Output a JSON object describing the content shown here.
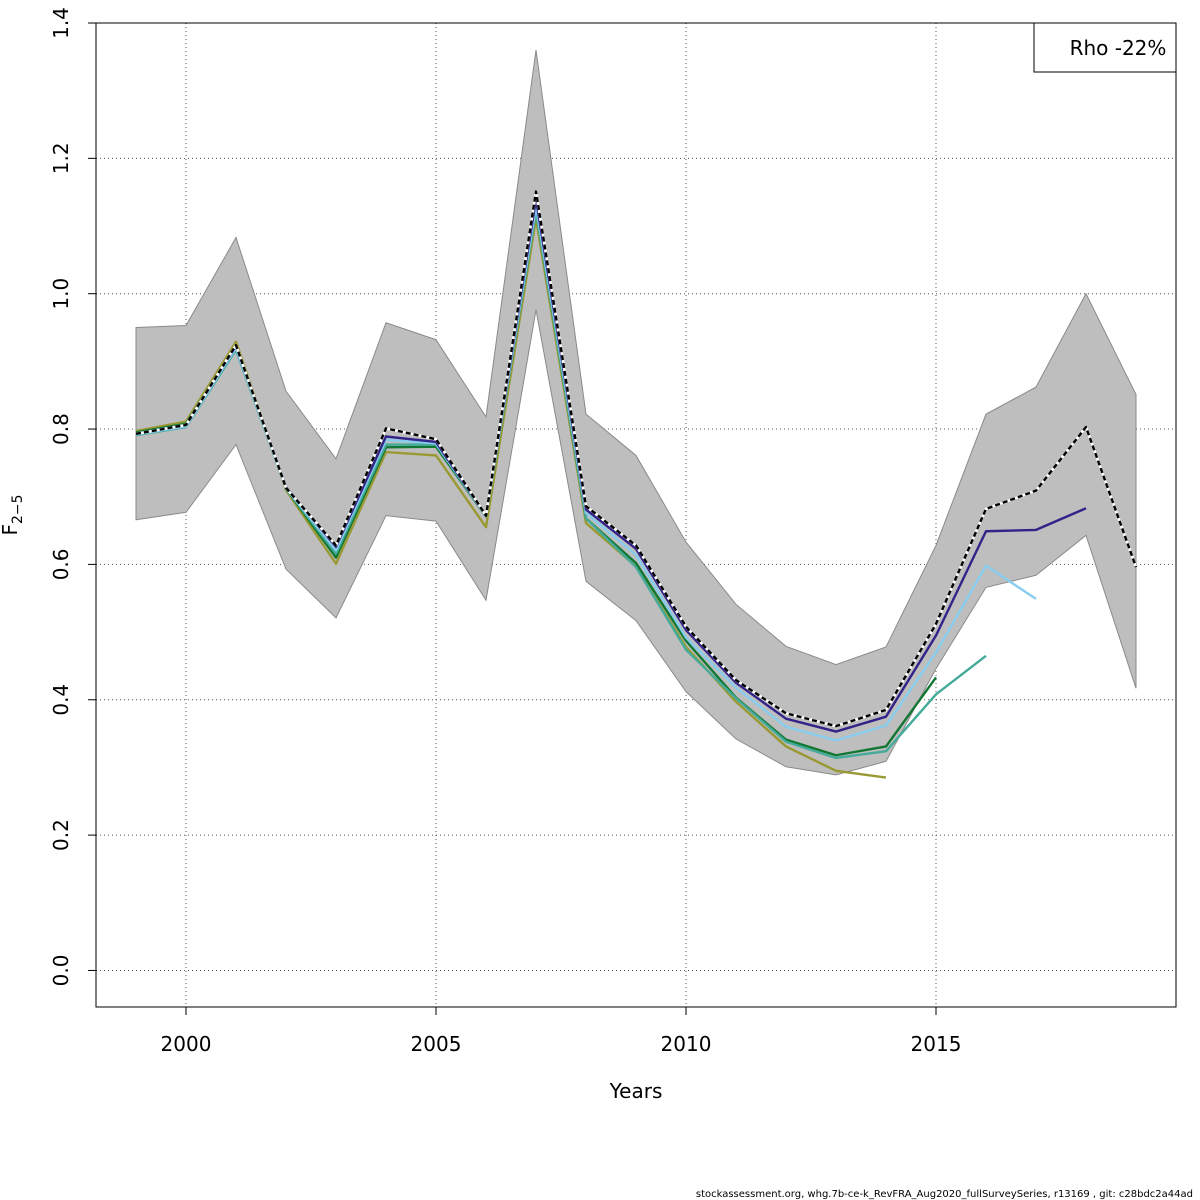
{
  "chart_data": {
    "type": "line",
    "xlabel": "Years",
    "ylabel_main": "F",
    "ylabel_sub": "2−5",
    "xlim": [
      1998.2,
      2019.8
    ],
    "ylim": [
      -0.054,
      1.4
    ],
    "xticks": [
      2000,
      2005,
      2010,
      2015
    ],
    "yticks": [
      0.0,
      0.2,
      0.4,
      0.6,
      0.8,
      1.0,
      1.2,
      1.4
    ],
    "ytick_labels": [
      "0.0",
      "0.2",
      "0.4",
      "0.6",
      "0.8",
      "1.0",
      "1.2",
      "1.4"
    ],
    "grid": true,
    "legend": {
      "text": "Rho -22%",
      "position": "top-right"
    },
    "band": {
      "color": "#bebebe",
      "x": [
        1999,
        2000,
        2001,
        2002,
        2003,
        2004,
        2005,
        2006,
        2007,
        2008,
        2009,
        2010,
        2011,
        2012,
        2013,
        2014,
        2015,
        2016,
        2017,
        2018,
        2019
      ],
      "upper": [
        0.95,
        0.953,
        1.083,
        0.856,
        0.756,
        0.957,
        0.932,
        0.818,
        1.36,
        0.822,
        0.761,
        0.633,
        0.541,
        0.479,
        0.452,
        0.478,
        0.628,
        0.822,
        0.862,
        1.0,
        0.851
      ],
      "lower": [
        0.666,
        0.677,
        0.777,
        0.593,
        0.521,
        0.672,
        0.664,
        0.547,
        0.976,
        0.575,
        0.517,
        0.412,
        0.342,
        0.301,
        0.289,
        0.309,
        0.446,
        0.566,
        0.584,
        0.643,
        0.417
      ]
    },
    "series": [
      {
        "color": "#000000",
        "dashed": true,
        "x": [
          1999,
          2000,
          2001,
          2002,
          2003,
          2004,
          2005,
          2006,
          2007,
          2008,
          2009,
          2010,
          2011,
          2012,
          2013,
          2014,
          2015,
          2016,
          2017,
          2018,
          2019
        ],
        "y": [
          0.793,
          0.806,
          0.924,
          0.713,
          0.628,
          0.801,
          0.785,
          0.672,
          1.151,
          0.686,
          0.628,
          0.508,
          0.429,
          0.38,
          0.361,
          0.385,
          0.512,
          0.682,
          0.709,
          0.803,
          0.596
        ]
      },
      {
        "color": "#332288",
        "x": [
          1999,
          2000,
          2001,
          2002,
          2003,
          2004,
          2005,
          2006,
          2007,
          2008,
          2009,
          2010,
          2011,
          2012,
          2013,
          2014,
          2015,
          2016,
          2017,
          2018
        ],
        "y": [
          0.793,
          0.806,
          0.923,
          0.714,
          0.626,
          0.789,
          0.781,
          0.672,
          1.14,
          0.681,
          0.623,
          0.503,
          0.425,
          0.372,
          0.353,
          0.375,
          0.495,
          0.649,
          0.651,
          0.683
        ]
      },
      {
        "color": "#88ccee",
        "x": [
          1999,
          2000,
          2001,
          2002,
          2003,
          2004,
          2005,
          2006,
          2007,
          2008,
          2009,
          2010,
          2011,
          2012,
          2013,
          2014,
          2015,
          2016,
          2017
        ],
        "y": [
          0.792,
          0.804,
          0.92,
          0.713,
          0.621,
          0.784,
          0.779,
          0.672,
          1.13,
          0.676,
          0.614,
          0.492,
          0.418,
          0.36,
          0.34,
          0.362,
          0.47,
          0.598,
          0.549
        ]
      },
      {
        "color": "#44aa99",
        "x": [
          1999,
          2000,
          2001,
          2002,
          2003,
          2004,
          2005,
          2006,
          2007,
          2008,
          2009,
          2010,
          2011,
          2012,
          2013,
          2014,
          2015,
          2016
        ],
        "y": [
          0.791,
          0.803,
          0.917,
          0.712,
          0.616,
          0.777,
          0.777,
          0.671,
          1.122,
          0.668,
          0.596,
          0.474,
          0.402,
          0.338,
          0.314,
          0.324,
          0.408,
          0.465
        ]
      },
      {
        "color": "#117733",
        "x": [
          1999,
          2000,
          2001,
          2002,
          2003,
          2004,
          2005,
          2006,
          2007,
          2008,
          2009,
          2010,
          2011,
          2012,
          2013,
          2014,
          2015
        ],
        "y": [
          0.795,
          0.808,
          0.922,
          0.712,
          0.61,
          0.773,
          0.774,
          0.671,
          1.123,
          0.668,
          0.602,
          0.487,
          0.403,
          0.341,
          0.318,
          0.331,
          0.433
        ]
      },
      {
        "color": "#999933",
        "x": [
          1999,
          2000,
          2001,
          2002,
          2003,
          2004,
          2005,
          2006,
          2007,
          2008,
          2009,
          2010,
          2011,
          2012,
          2013,
          2014
        ],
        "y": [
          0.797,
          0.811,
          0.929,
          0.71,
          0.601,
          0.766,
          0.761,
          0.655,
          1.111,
          0.661,
          0.597,
          0.478,
          0.397,
          0.331,
          0.295,
          0.285
        ]
      }
    ]
  },
  "footer": "stockassessment.org, whg.7b-ce-k_RevFRA_Aug2020_fullSurveySeries, r13169 , git: c28bdc2a44ad"
}
